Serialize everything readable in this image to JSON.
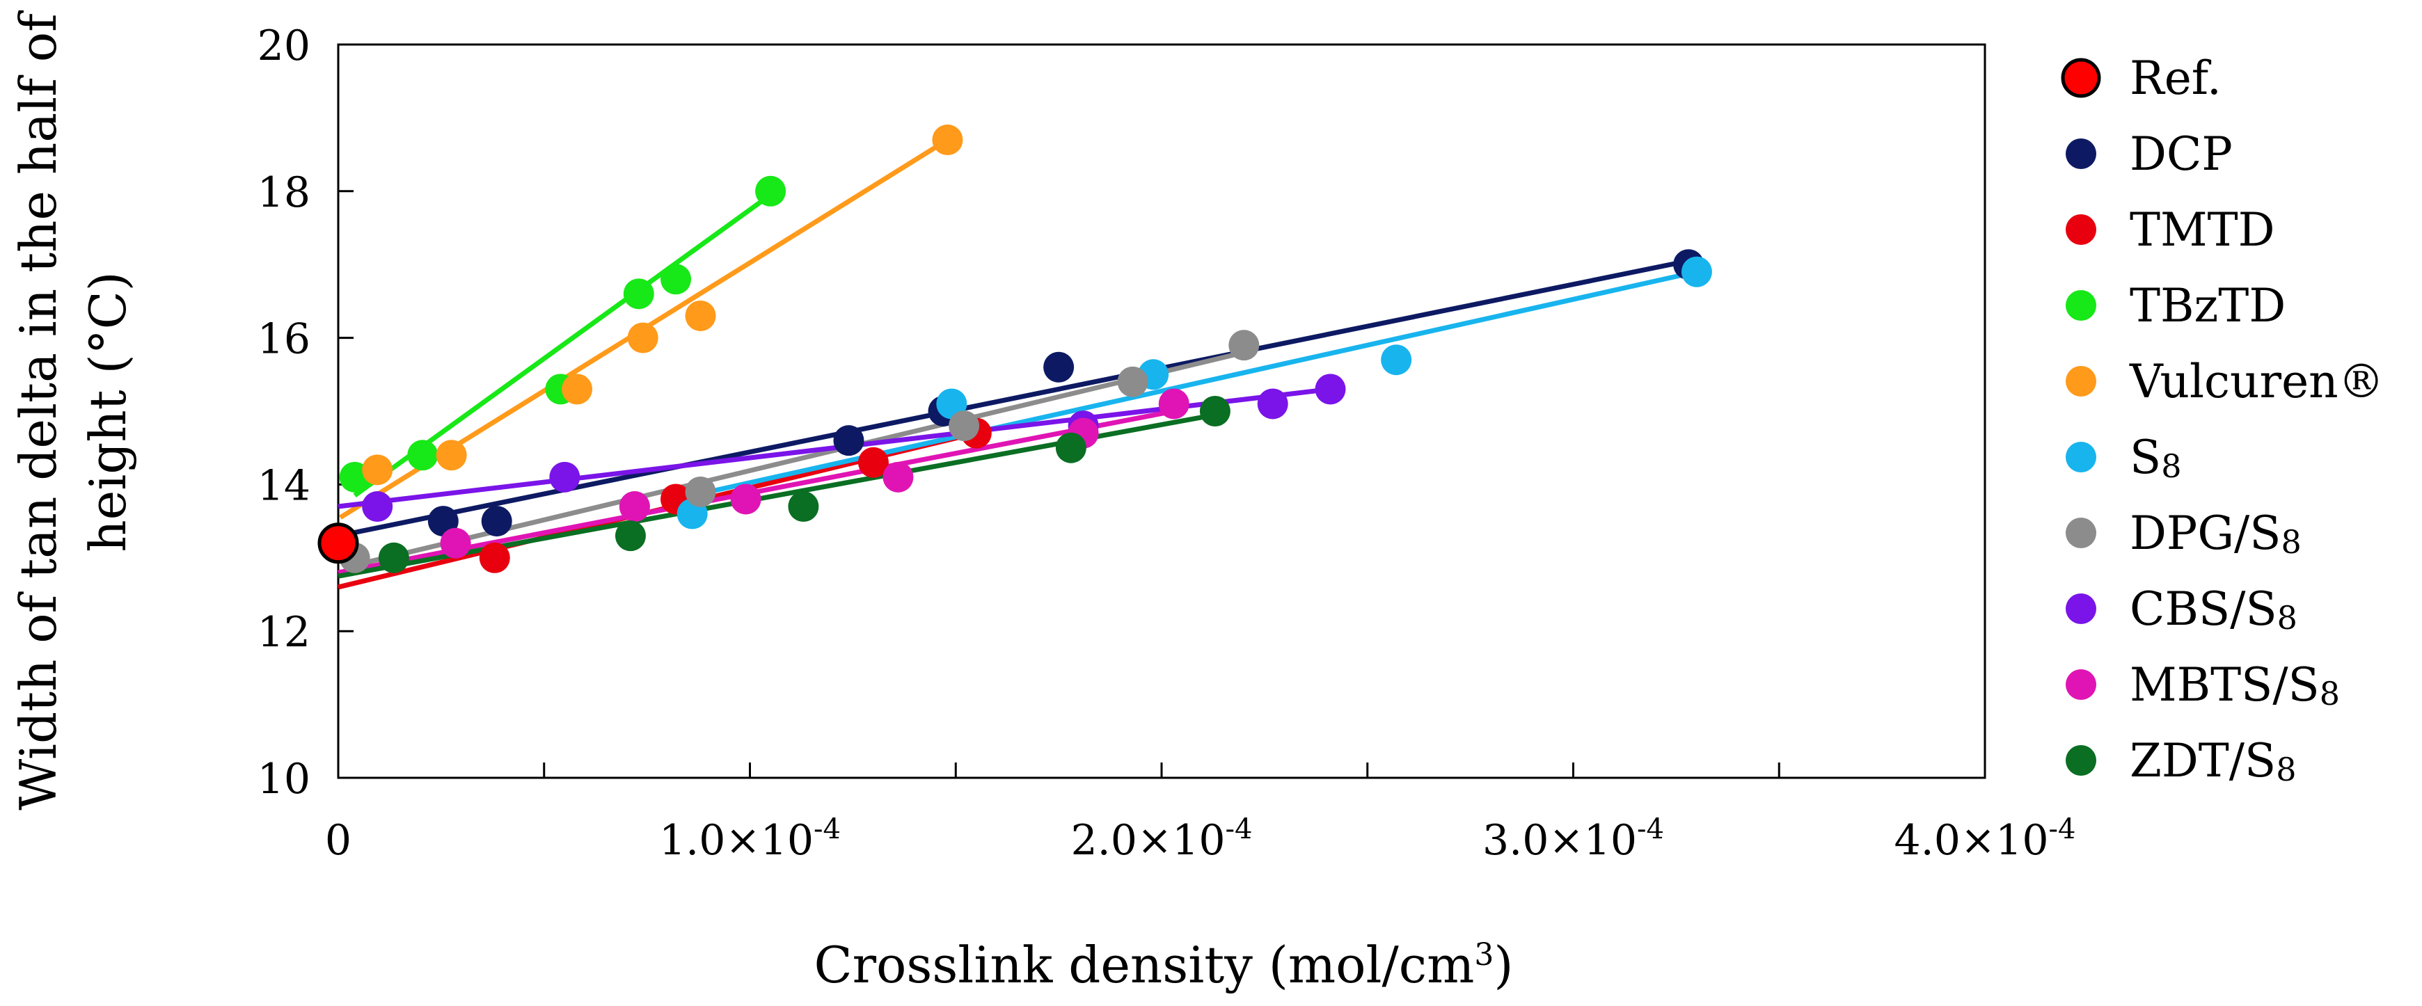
{
  "chart_data": {
    "type": "scatter",
    "xlabel_main": "Crosslink density (mol/cm",
    "xlabel_sup": "3",
    "xlabel_end": ")",
    "ylabel_line1": "Width of tan delta in the half of",
    "ylabel_line2": "height (°C)",
    "xlim": [
      0,
      0.0004
    ],
    "ylim": [
      10,
      20
    ],
    "x_ticks": [
      {
        "value": 0,
        "label": "0",
        "exp": ""
      },
      {
        "value": 0.0001,
        "label": "1.0×10",
        "exp": "-4"
      },
      {
        "value": 0.0002,
        "label": "2.0×10",
        "exp": "-4"
      },
      {
        "value": 0.0003,
        "label": "3.0×10",
        "exp": "-4"
      },
      {
        "value": 0.0004,
        "label": "4.0×10",
        "exp": "-4"
      }
    ],
    "x_minor_ticks": [
      5e-05,
      0.00015,
      0.00025,
      0.00035
    ],
    "y_ticks": [
      {
        "value": 10,
        "label": "10"
      },
      {
        "value": 12,
        "label": "12"
      },
      {
        "value": 14,
        "label": "14"
      },
      {
        "value": 16,
        "label": "16"
      },
      {
        "value": 18,
        "label": "18"
      },
      {
        "value": 20,
        "label": "20"
      }
    ],
    "legend_position": "right",
    "series": [
      {
        "name": "Ref.",
        "sub": "",
        "color": "#ff0000",
        "outline": true,
        "points": [
          [
            0,
            13.2
          ]
        ],
        "fit": null
      },
      {
        "name": "DCP",
        "sub": "",
        "color": "#0d1a63",
        "points": [
          [
            2.55e-05,
            13.5
          ],
          [
            3.85e-05,
            13.5
          ],
          [
            0.000124,
            14.6
          ],
          [
            0.000147,
            15.0
          ],
          [
            0.000175,
            15.6
          ],
          [
            0.000328,
            17.0
          ]
        ],
        "fit": [
          [
            0,
            13.3
          ],
          [
            0.000328,
            17.05
          ]
        ]
      },
      {
        "name": "TMTD",
        "sub": "",
        "color": "#e8000f",
        "points": [
          [
            3.8e-05,
            13.0
          ],
          [
            8.2e-05,
            13.8
          ],
          [
            0.00013,
            14.3
          ],
          [
            0.000155,
            14.7
          ]
        ],
        "fit": [
          [
            0,
            12.6
          ],
          [
            0.000155,
            14.7
          ]
        ]
      },
      {
        "name": "TBzTD",
        "sub": "",
        "color": "#17e817",
        "points": [
          [
            4e-06,
            14.1
          ],
          [
            2.05e-05,
            14.4
          ],
          [
            5.4e-05,
            15.3
          ],
          [
            7.3e-05,
            16.6
          ],
          [
            8.2e-05,
            16.8
          ],
          [
            0.000105,
            18.0
          ]
        ],
        "fit": [
          [
            4e-06,
            13.85
          ],
          [
            0.000105,
            17.95
          ]
        ]
      },
      {
        "name": "Vulcuren®",
        "sub": "",
        "color": "#ff9a1a",
        "points": [
          [
            9.5e-06,
            14.2
          ],
          [
            2.75e-05,
            14.4
          ],
          [
            5.8e-05,
            15.3
          ],
          [
            7.4e-05,
            16.0
          ],
          [
            8.8e-05,
            16.3
          ],
          [
            0.000148,
            18.7
          ]
        ],
        "fit": [
          [
            5e-07,
            13.55
          ],
          [
            0.000148,
            18.7
          ]
        ]
      },
      {
        "name": "S",
        "sub": "8",
        "color": "#18b4ee",
        "points": [
          [
            8.6e-05,
            13.6
          ],
          [
            0.000149,
            15.1
          ],
          [
            0.000198,
            15.5
          ],
          [
            0.000257,
            15.7
          ],
          [
            0.00033,
            16.9
          ]
        ],
        "fit": [
          [
            8.6e-05,
            13.85
          ],
          [
            0.00033,
            16.9
          ]
        ]
      },
      {
        "name": "DPG/S",
        "sub": "8",
        "color": "#8c8c8c",
        "points": [
          [
            4e-06,
            13.0
          ],
          [
            7.2e-05,
            13.7
          ],
          [
            8.8e-05,
            13.9
          ],
          [
            0.000152,
            14.8
          ],
          [
            0.000193,
            15.4
          ],
          [
            0.00022,
            15.9
          ]
        ],
        "fit": [
          [
            4e-06,
            12.9
          ],
          [
            0.00022,
            15.8
          ]
        ]
      },
      {
        "name": "CBS/S",
        "sub": "8",
        "color": "#7a14e8",
        "points": [
          [
            9.5e-06,
            13.7
          ],
          [
            5.5e-05,
            14.1
          ],
          [
            0.000181,
            14.8
          ],
          [
            0.000227,
            15.1
          ],
          [
            0.000241,
            15.3
          ]
        ],
        "fit": [
          [
            0,
            13.7
          ],
          [
            0.000241,
            15.3
          ]
        ]
      },
      {
        "name": "MBTS/S",
        "sub": "8",
        "color": "#e014b4",
        "points": [
          [
            2.85e-05,
            13.2
          ],
          [
            7.2e-05,
            13.7
          ],
          [
            9.9e-05,
            13.8
          ],
          [
            0.000136,
            14.1
          ],
          [
            0.000181,
            14.7
          ],
          [
            0.000203,
            15.1
          ]
        ],
        "fit": [
          [
            0,
            12.8
          ],
          [
            0.000203,
            15.0
          ]
        ]
      },
      {
        "name": "ZDT/S",
        "sub": "8",
        "color": "#0a6e23",
        "points": [
          [
            1.35e-05,
            13.0
          ],
          [
            7.1e-05,
            13.3
          ],
          [
            0.000113,
            13.7
          ],
          [
            0.000178,
            14.5
          ],
          [
            0.000213,
            15.0
          ]
        ],
        "fit": [
          [
            0,
            12.75
          ],
          [
            0.000213,
            14.95
          ]
        ]
      }
    ]
  }
}
